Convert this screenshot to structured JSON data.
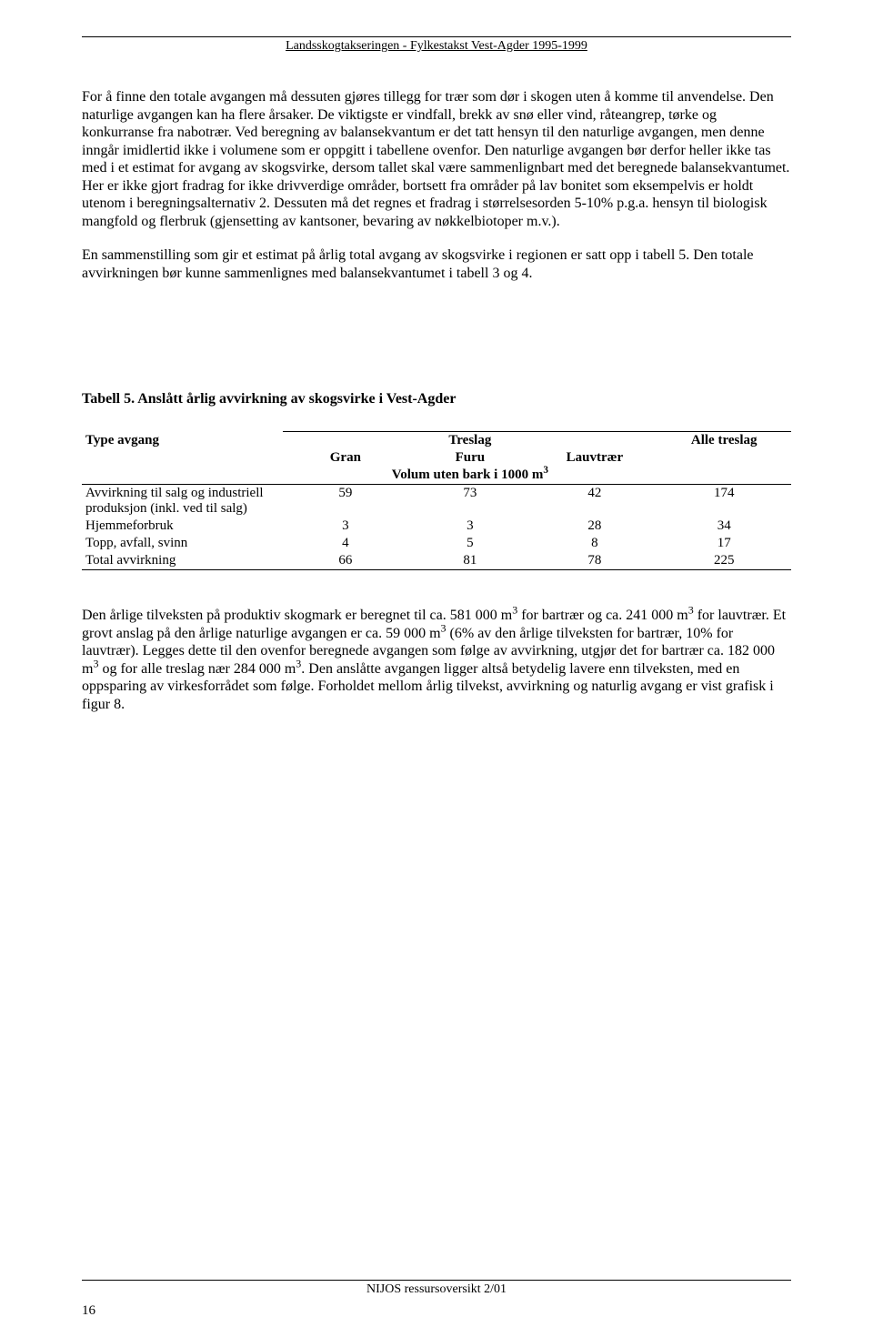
{
  "header": {
    "title": "Landsskogtakseringen - Fylkestakst Vest-Agder 1995-1999"
  },
  "paragraphs": {
    "p1": "For å finne den totale avgangen må dessuten gjøres tillegg for trær som dør i skogen uten å komme til anvendelse. Den naturlige avgangen kan ha flere årsaker. De viktigste er vindfall, brekk av snø eller vind, råteangrep, tørke og konkurranse fra nabotrær. Ved beregning av balansekvantum er det tatt hensyn til den naturlige avgangen, men denne inngår imidlertid ikke i volumene som er oppgitt i tabellene ovenfor. Den naturlige avgangen bør derfor heller ikke tas med i et estimat for avgang av skogsvirke, dersom tallet skal være sammenlignbart med det beregnede balansekvantumet. Her er ikke gjort fradrag for ikke drivverdige områder, bortsett fra områder på lav bonitet som eksempelvis er holdt utenom i beregningsalternativ 2. Dessuten må det regnes et fradrag i størrelsesorden 5-10% p.g.a. hensyn til biologisk mangfold og flerbruk (gjensetting av kantsoner, bevaring av nøkkelbiotoper m.v.).",
    "p2": "En sammenstilling som gir et estimat på årlig total avgang av skogsvirke i regionen er satt opp i tabell 5. Den totale avvirkningen bør kunne sammenlignes med balansekvantumet i tabell 3 og 4.",
    "p3_a": "Den årlige tilveksten på produktiv skogmark er beregnet til ca. 581 000 m",
    "p3_b": " for bartrær og ca. 241 000 m",
    "p3_c": " for lauvtrær. Et grovt anslag på den årlige naturlige avgangen er ca. 59 000 m",
    "p3_d": " (6% av den årlige tilveksten for bartrær, 10% for lauvtrær). Legges dette til den ovenfor beregnede avgangen som følge av avvirkning, utgjør det for bartrær ca. 182 000 m",
    "p3_e": " og for alle treslag nær 284 000 m",
    "p3_f": ". Den anslåtte avgangen ligger altså betydelig lavere enn tilveksten, med en oppsparing av virkesforrådet som følge. Forholdet mellom årlig tilvekst, avvirkning og naturlig avgang er vist grafisk i figur 8.",
    "sup3": "3"
  },
  "table": {
    "caption": "Tabell 5. Anslått årlig avvirkning av skogsvirke i Vest-Agder",
    "header_type": "Type avgang",
    "header_group": "Treslag",
    "header_c1": "Gran",
    "header_c2": "Furu",
    "header_c3": "Lauvtrær",
    "header_unit": "Volum uten bark i 1000 m",
    "header_unit_sup": "3",
    "header_alle": "Alle treslag",
    "rows": [
      {
        "label": "Avvirkning til salg og industriell produksjon (inkl. ved til salg)",
        "c1": "59",
        "c2": "73",
        "c3": "42",
        "c4": "174"
      },
      {
        "label": "Hjemmeforbruk",
        "c1": "3",
        "c2": "3",
        "c3": "28",
        "c4": "34"
      },
      {
        "label": "Topp, avfall, svinn",
        "c1": "4",
        "c2": "5",
        "c3": "8",
        "c4": "17"
      },
      {
        "label": "Total avvirkning",
        "c1": "66",
        "c2": "81",
        "c3": "78",
        "c4": "225"
      }
    ]
  },
  "footer": {
    "text": "NIJOS ressursoversikt 2/01",
    "page": "16"
  }
}
